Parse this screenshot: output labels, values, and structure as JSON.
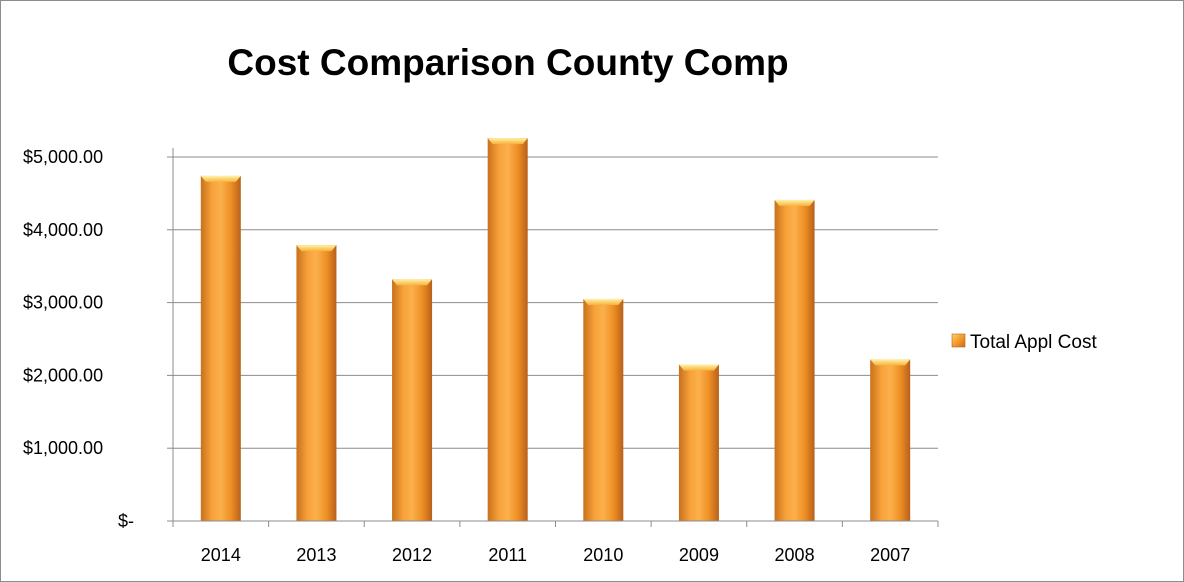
{
  "chart_data": {
    "type": "bar",
    "title": "Cost Comparison County Comp",
    "categories": [
      "2014",
      "2013",
      "2012",
      "2011",
      "2010",
      "2009",
      "2008",
      "2007"
    ],
    "series": [
      {
        "name": "Total Appl Cost",
        "values": [
          4740,
          3790,
          3320,
          5260,
          3050,
          2150,
          4410,
          2220
        ],
        "color": "#f39c2c"
      }
    ],
    "ylim": [
      0,
      5000
    ],
    "yticks": [
      0,
      1000,
      2000,
      3000,
      4000,
      5000
    ],
    "ytick_labels": [
      "$-",
      "$1,000.00",
      "$2,000.00",
      "$3,000.00",
      "$4,000.00",
      "$5,000.00"
    ],
    "grid": true,
    "legend_position": "right"
  }
}
